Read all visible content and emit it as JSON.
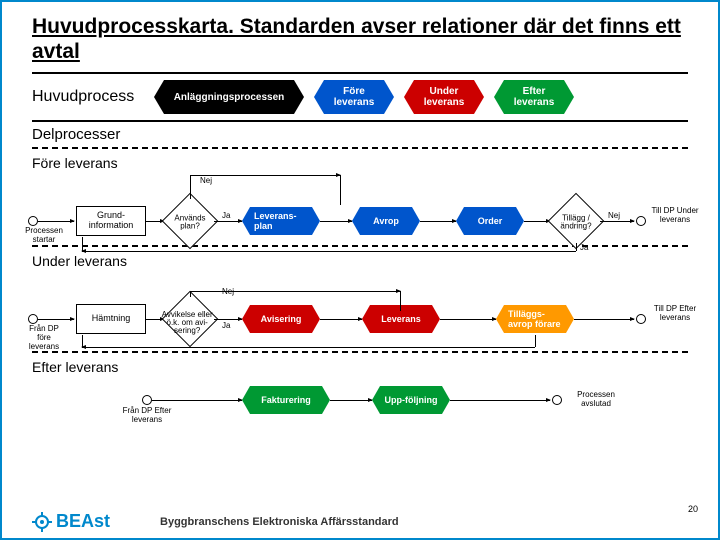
{
  "title": "Huvudprocesskarta. Standarden avser relationer där det finns ett avtal",
  "huvudprocess": {
    "label": "Huvudprocess",
    "phases": [
      {
        "t": "Anläggningsprocessen",
        "c": "black"
      },
      {
        "t": "Före leverans",
        "c": "blue"
      },
      {
        "t": "Under leverans",
        "c": "red"
      },
      {
        "t": "Efter leverans",
        "c": "green"
      }
    ]
  },
  "delprocesser_label": "Delprocesser",
  "sections": {
    "fore": {
      "label": "Före leverans",
      "start": "Processen startar",
      "d1": "Används plan?",
      "nej": "Nej",
      "ja": "Ja",
      "p1": "Grund-information",
      "h1": "Leverans-plan",
      "h2": "Avrop",
      "h3": "Order",
      "d2": "Tillägg / ändring?",
      "out": "Till DP Under leverans"
    },
    "under": {
      "label": "Under leverans",
      "start": "Från DP före leverans",
      "d1": "Avvikelse eller ö.k. om avi-sering?",
      "nej": "Nej",
      "ja": "Ja",
      "p1": "Hämtning",
      "h1": "Avisering",
      "h2": "Leverans",
      "h3": "Tilläggs-avrop förare",
      "out": "Till DP Efter leverans"
    },
    "efter": {
      "label": "Efter leverans",
      "start": "Från DP Efter leverans",
      "h1": "Fakturering",
      "h2": "Upp-följning",
      "out": "Processen avslutad"
    }
  },
  "footer": {
    "brand": "BEAst",
    "text": "Byggbranschens Elektroniska Affärsstandard",
    "page": "20"
  }
}
